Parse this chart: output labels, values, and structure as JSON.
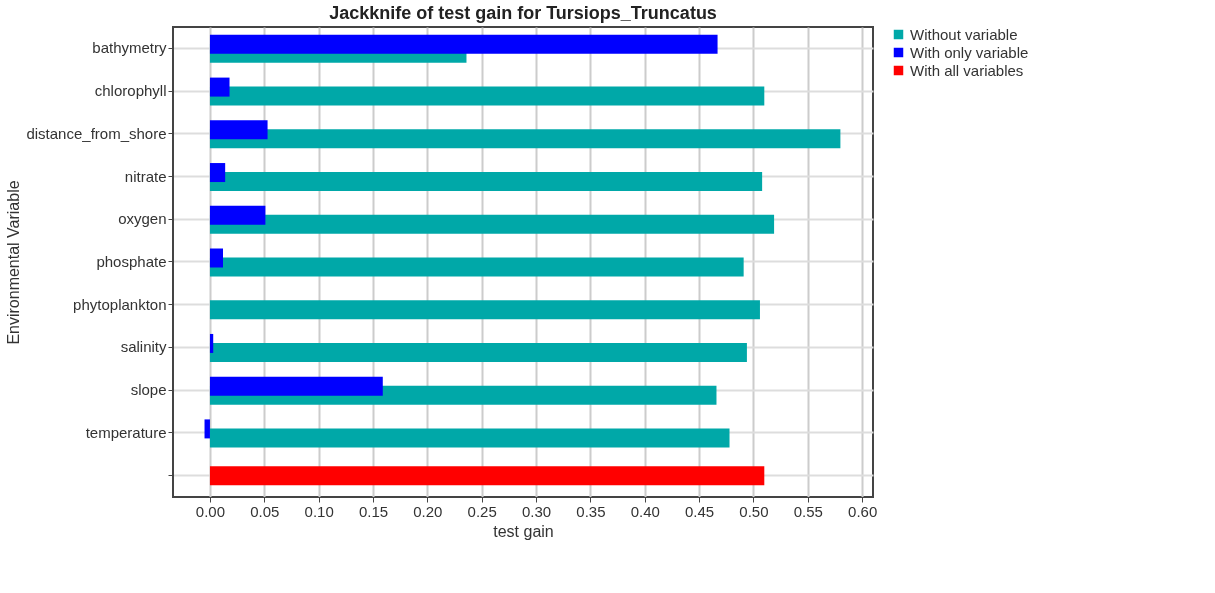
{
  "chart_data": {
    "type": "bar",
    "orientation": "horizontal",
    "title": "Jackknife of test gain for Tursiops_Truncatus",
    "xlabel": "test gain",
    "ylabel": "Environmental Variable",
    "categories": [
      "bathymetry",
      "chlorophyll",
      "distance_from_shore",
      "nitrate",
      "oxygen",
      "phosphate",
      "phytoplankton",
      "salinity",
      "slope",
      "temperature",
      null
    ],
    "series": [
      {
        "name": "Without variable",
        "color": "#00a8a8",
        "values": [
          0.236,
          0.51,
          0.58,
          0.508,
          0.519,
          0.491,
          0.506,
          0.494,
          0.466,
          0.478,
          null
        ]
      },
      {
        "name": "With only variable",
        "color": "#0000ff",
        "values": [
          0.467,
          0.018,
          0.053,
          0.014,
          0.051,
          0.012,
          0.0,
          0.003,
          0.159,
          -0.005,
          null
        ]
      },
      {
        "name": "With all variables",
        "color": "#ff0000",
        "values": [
          null,
          null,
          null,
          null,
          null,
          null,
          null,
          null,
          null,
          null,
          0.51
        ]
      }
    ],
    "xlim": [
      -0.034,
      0.61
    ],
    "xticks": [
      {
        "value": 0,
        "label": "0.00"
      },
      0.05,
      {
        "value": 0.1,
        "label": "0.10"
      },
      0.15,
      {
        "value": 0.2,
        "label": "0.20"
      },
      0.25,
      {
        "value": 0.3,
        "label": "0.30"
      },
      0.35,
      {
        "value": 0.4,
        "label": "0.40"
      },
      0.45,
      {
        "value": 0.5,
        "label": "0.50"
      },
      0.55,
      {
        "value": 0.6,
        "label": "0.60"
      }
    ],
    "grid": true,
    "legend": "top right"
  }
}
